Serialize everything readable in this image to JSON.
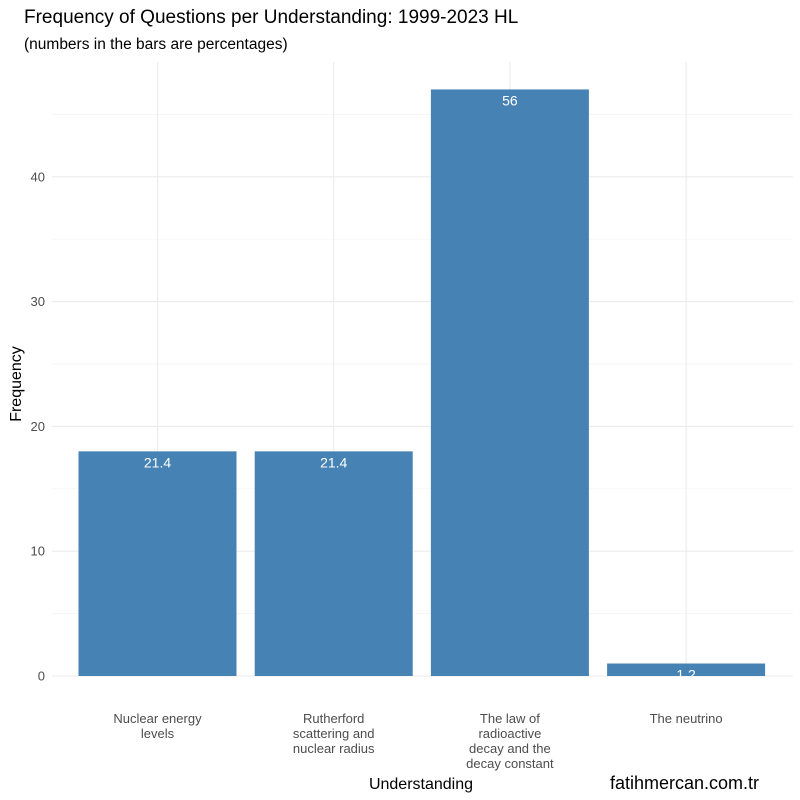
{
  "chart_data": {
    "type": "bar",
    "title": "Frequency of Questions per Understanding: 1999-2023 HL",
    "subtitle": "(numbers in the bars are percentages)",
    "xlabel": "Understanding",
    "ylabel": "Frequency",
    "categories": [
      [
        "Nuclear energy",
        "levels"
      ],
      [
        "Rutherford",
        "scattering and",
        "nuclear radius"
      ],
      [
        "The law of",
        "radioactive",
        "decay and the",
        "decay constant"
      ],
      [
        "The neutrino"
      ]
    ],
    "values": [
      18,
      18,
      47,
      1
    ],
    "bar_labels": [
      "21.4",
      "21.4",
      "56",
      "1.2"
    ],
    "yticks": [
      0,
      10,
      20,
      30,
      40
    ],
    "ylim": [
      0,
      49.3
    ],
    "color": "#4682b4",
    "grid": true
  },
  "credit": "fatihmercan.com.tr"
}
